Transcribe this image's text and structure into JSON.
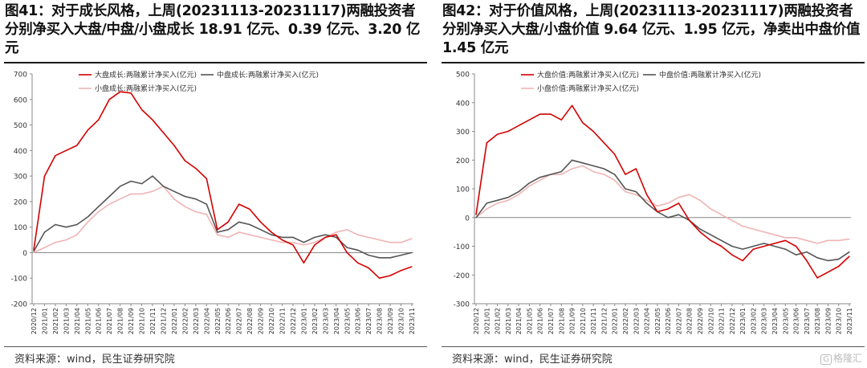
{
  "left": {
    "title": "图41：对于成长风格，上周(20231113-20231117)两融投资者分别净买入大盘/中盘/小盘成长 18.91 亿元、0.39 亿元、3.20 亿元",
    "source": "资料来源：wind，民生证券研究院"
  },
  "right": {
    "title": "图42：对于价值风格，上周(20231113-20231117)两融投资者分别净买入大盘/小盘价值 9.64 亿元、1.95 亿元，净卖出中盘价值 1.45 亿元",
    "source": "资料来源：wind，民生证券研究院"
  },
  "watermark": {
    "box": "G",
    "text": "格隆汇"
  },
  "chart_data": [
    {
      "type": "line",
      "ylim": [
        -200,
        700
      ],
      "yticks": [
        -200,
        -100,
        0,
        100,
        200,
        300,
        400,
        500,
        600,
        700
      ],
      "categories": [
        "2020/12",
        "2021/01",
        "2021/02",
        "2021/03",
        "2021/04",
        "2021/05",
        "2021/06",
        "2021/07",
        "2021/08",
        "2021/09",
        "2021/10",
        "2021/11",
        "2021/12",
        "2022/01",
        "2022/02",
        "2022/03",
        "2022/04",
        "2022/05",
        "2022/06",
        "2022/07",
        "2022/08",
        "2022/09",
        "2022/10",
        "2022/11",
        "2022/12",
        "2023/01",
        "2023/02",
        "2023/03",
        "2023/04",
        "2023/05",
        "2023/06",
        "2023/07",
        "2023/08",
        "2023/09",
        "2023/10",
        "2023/11"
      ],
      "series": [
        {
          "name": "大盘成长:两融累计净买入(亿元)",
          "color": "#d40000",
          "values": [
            10,
            300,
            380,
            400,
            420,
            480,
            520,
            600,
            630,
            625,
            560,
            520,
            470,
            420,
            360,
            330,
            290,
            90,
            120,
            190,
            170,
            120,
            80,
            50,
            30,
            -40,
            30,
            60,
            70,
            0,
            -40,
            -60,
            -100,
            -90,
            -70,
            -55
          ]
        },
        {
          "name": "中盘成长:两融累计净买入(亿元)",
          "color": "#555555",
          "values": [
            5,
            80,
            110,
            100,
            110,
            140,
            180,
            220,
            260,
            280,
            270,
            300,
            260,
            240,
            220,
            210,
            190,
            80,
            90,
            120,
            110,
            90,
            70,
            60,
            60,
            40,
            60,
            70,
            60,
            20,
            10,
            -10,
            -20,
            -20,
            -10,
            0
          ]
        },
        {
          "name": "小盘成长:两融累计净买入(亿元)",
          "color": "#f0b4b4",
          "values": [
            0,
            20,
            40,
            50,
            70,
            120,
            160,
            190,
            210,
            230,
            230,
            240,
            260,
            210,
            180,
            160,
            150,
            70,
            60,
            80,
            70,
            60,
            50,
            40,
            40,
            30,
            40,
            60,
            80,
            90,
            70,
            60,
            50,
            40,
            40,
            55
          ]
        }
      ]
    },
    {
      "type": "line",
      "ylim": [
        -300,
        500
      ],
      "yticks": [
        -300,
        -200,
        -100,
        0,
        100,
        200,
        300,
        400,
        500
      ],
      "categories": [
        "2020/12",
        "2021/01",
        "2021/02",
        "2021/03",
        "2021/04",
        "2021/05",
        "2021/06",
        "2021/07",
        "2021/08",
        "2021/09",
        "2021/10",
        "2021/11",
        "2021/12",
        "2022/01",
        "2022/02",
        "2022/03",
        "2022/04",
        "2022/05",
        "2022/06",
        "2022/07",
        "2022/08",
        "2022/09",
        "2022/10",
        "2022/11",
        "2022/12",
        "2023/01",
        "2023/02",
        "2023/03",
        "2023/04",
        "2023/05",
        "2023/06",
        "2023/07",
        "2023/08",
        "2023/09",
        "2023/10",
        "2023/11"
      ],
      "series": [
        {
          "name": "大盘价值:两融累计净买入(亿元)",
          "color": "#d40000",
          "values": [
            10,
            260,
            290,
            300,
            320,
            340,
            360,
            360,
            340,
            390,
            330,
            300,
            260,
            220,
            150,
            170,
            80,
            20,
            30,
            50,
            -10,
            -50,
            -80,
            -100,
            -130,
            -150,
            -110,
            -100,
            -90,
            -80,
            -100,
            -150,
            -210,
            -190,
            -170,
            -135
          ]
        },
        {
          "name": "中盘价值:两融累计净买入(亿元)",
          "color": "#555555",
          "values": [
            0,
            50,
            60,
            70,
            90,
            120,
            140,
            150,
            160,
            200,
            190,
            180,
            170,
            150,
            100,
            90,
            50,
            20,
            0,
            10,
            -10,
            -40,
            -60,
            -80,
            -100,
            -110,
            -100,
            -90,
            -100,
            -110,
            -130,
            -120,
            -140,
            -150,
            -145,
            -120
          ]
        },
        {
          "name": "小盘价值:两融累计净买入(亿元)",
          "color": "#f0b4b4",
          "values": [
            0,
            30,
            50,
            60,
            80,
            110,
            130,
            150,
            150,
            170,
            180,
            160,
            150,
            130,
            90,
            80,
            60,
            40,
            50,
            70,
            80,
            60,
            30,
            10,
            -10,
            -30,
            -40,
            -50,
            -60,
            -70,
            -70,
            -80,
            -90,
            -80,
            -80,
            -75
          ]
        }
      ]
    }
  ]
}
